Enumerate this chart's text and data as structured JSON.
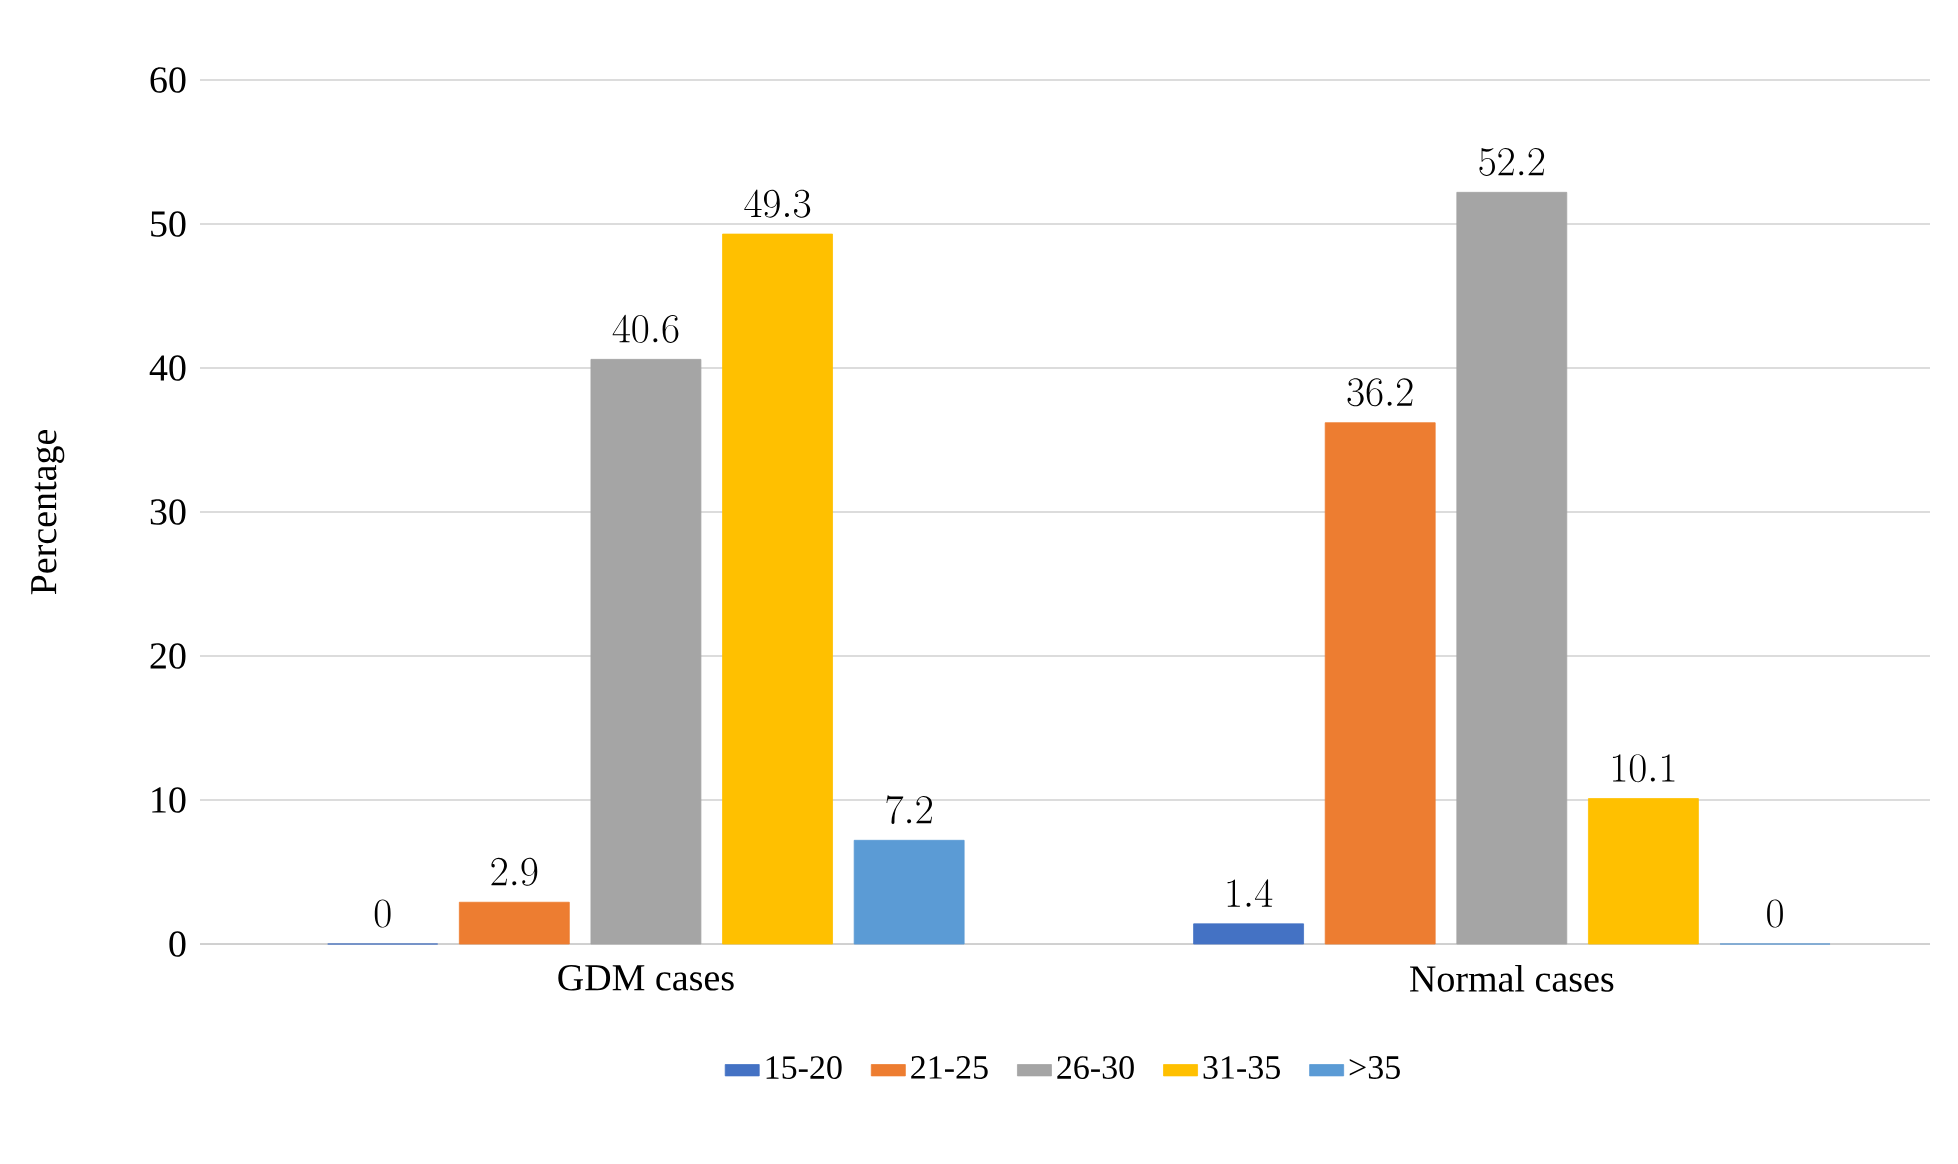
{
  "chart_data": {
    "type": "bar",
    "categories": [
      "GDM cases",
      "Normal cases"
    ],
    "ylabel": "Percentage",
    "ylim": [
      0,
      60
    ],
    "yticks": [
      0,
      10,
      20,
      30,
      40,
      50,
      60
    ],
    "grid": "y",
    "legend": "bottom",
    "data_labels": true,
    "series": [
      {
        "name": "15-20",
        "color": "#4472c4",
        "values": [
          0,
          1.4
        ]
      },
      {
        "name": "21-25",
        "color": "#ed7d31",
        "values": [
          2.9,
          36.2
        ]
      },
      {
        "name": "26-30",
        "color": "#a5a5a5",
        "values": [
          40.6,
          52.2
        ]
      },
      {
        "name": "31-35",
        "color": "#ffc000",
        "values": [
          49.3,
          10.1
        ]
      },
      {
        "name": ">35",
        "color": "#5b9bd5",
        "values": [
          7.2,
          0
        ]
      }
    ]
  }
}
